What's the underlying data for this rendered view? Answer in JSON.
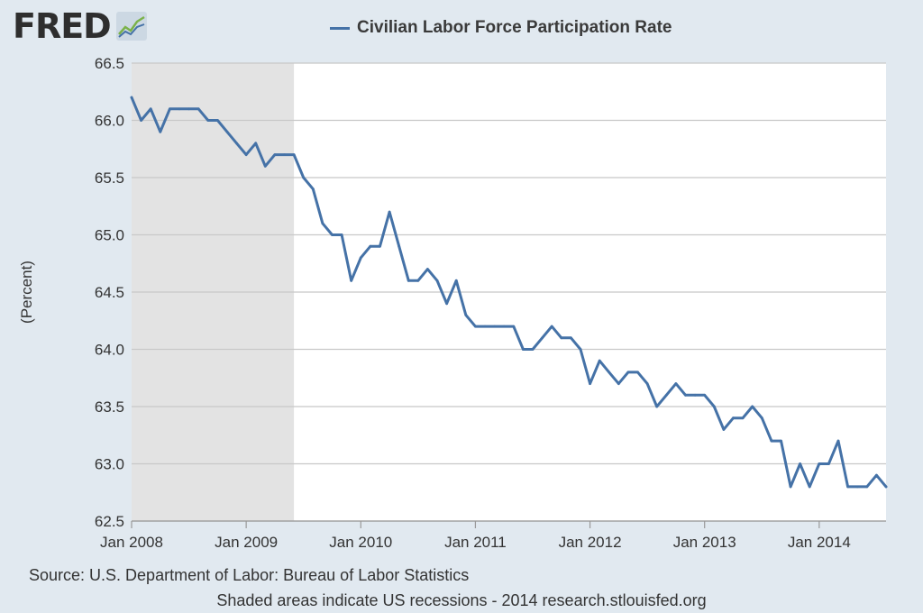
{
  "brand": {
    "logo_text": "FRED"
  },
  "chart_data": {
    "type": "line",
    "title": "Civilian Labor Force Participation Rate",
    "ylabel": "(Percent)",
    "xlabel": "",
    "ylim": [
      62.5,
      66.5
    ],
    "xlim": [
      "2008-01",
      "2014-08"
    ],
    "yticks": [
      "62.5",
      "63.0",
      "63.5",
      "64.0",
      "64.5",
      "65.0",
      "65.5",
      "66.0",
      "66.5"
    ],
    "xticks": [
      {
        "date": "2008-01",
        "label": "Jan 2008"
      },
      {
        "date": "2009-01",
        "label": "Jan 2009"
      },
      {
        "date": "2010-01",
        "label": "Jan 2010"
      },
      {
        "date": "2011-01",
        "label": "Jan 2011"
      },
      {
        "date": "2012-01",
        "label": "Jan 2012"
      },
      {
        "date": "2013-01",
        "label": "Jan 2013"
      },
      {
        "date": "2014-01",
        "label": "Jan 2014"
      }
    ],
    "grid": true,
    "recession": {
      "start": "2008-01",
      "end": "2009-06"
    },
    "series": [
      {
        "name": "Civilian Labor Force Participation Rate",
        "color": "#4572a7",
        "x": [
          "2008-01",
          "2008-02",
          "2008-03",
          "2008-04",
          "2008-05",
          "2008-06",
          "2008-07",
          "2008-08",
          "2008-09",
          "2008-10",
          "2008-11",
          "2008-12",
          "2009-01",
          "2009-02",
          "2009-03",
          "2009-04",
          "2009-05",
          "2009-06",
          "2009-07",
          "2009-08",
          "2009-09",
          "2009-10",
          "2009-11",
          "2009-12",
          "2010-01",
          "2010-02",
          "2010-03",
          "2010-04",
          "2010-05",
          "2010-06",
          "2010-07",
          "2010-08",
          "2010-09",
          "2010-10",
          "2010-11",
          "2010-12",
          "2011-01",
          "2011-02",
          "2011-03",
          "2011-04",
          "2011-05",
          "2011-06",
          "2011-07",
          "2011-08",
          "2011-09",
          "2011-10",
          "2011-11",
          "2011-12",
          "2012-01",
          "2012-02",
          "2012-03",
          "2012-04",
          "2012-05",
          "2012-06",
          "2012-07",
          "2012-08",
          "2012-09",
          "2012-10",
          "2012-11",
          "2012-12",
          "2013-01",
          "2013-02",
          "2013-03",
          "2013-04",
          "2013-05",
          "2013-06",
          "2013-07",
          "2013-08",
          "2013-09",
          "2013-10",
          "2013-11",
          "2013-12",
          "2014-01",
          "2014-02",
          "2014-03",
          "2014-04",
          "2014-05",
          "2014-06",
          "2014-07",
          "2014-08"
        ],
        "values": [
          66.2,
          66.0,
          66.1,
          65.9,
          66.1,
          66.1,
          66.1,
          66.1,
          66.0,
          66.0,
          65.9,
          65.8,
          65.7,
          65.8,
          65.6,
          65.7,
          65.7,
          65.7,
          65.5,
          65.4,
          65.1,
          65.0,
          65.0,
          64.6,
          64.8,
          64.9,
          64.9,
          65.2,
          64.9,
          64.6,
          64.6,
          64.7,
          64.6,
          64.4,
          64.6,
          64.3,
          64.2,
          64.2,
          64.2,
          64.2,
          64.2,
          64.0,
          64.0,
          64.1,
          64.2,
          64.1,
          64.1,
          64.0,
          63.7,
          63.9,
          63.8,
          63.7,
          63.8,
          63.8,
          63.7,
          63.5,
          63.6,
          63.7,
          63.6,
          63.6,
          63.6,
          63.5,
          63.3,
          63.4,
          63.4,
          63.5,
          63.4,
          63.2,
          63.2,
          62.8,
          63.0,
          62.8,
          63.0,
          63.0,
          63.2,
          62.8,
          62.8,
          62.8,
          62.9,
          62.8
        ]
      }
    ]
  },
  "footer": {
    "source": "Source: U.S. Department of Labor: Bureau of Labor Statistics",
    "note": "Shaded areas indicate US recessions - 2014 research.stlouisfed.org"
  }
}
